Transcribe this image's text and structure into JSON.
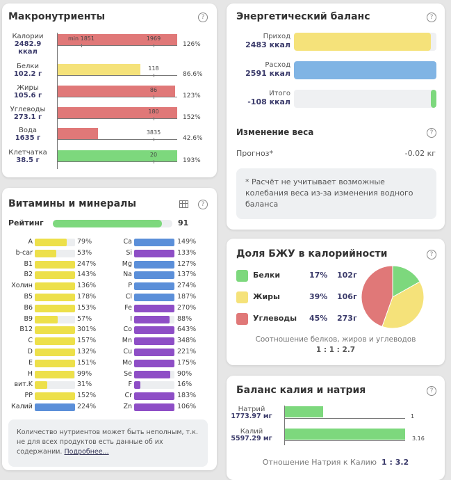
{
  "colors": {
    "red": "#e07878",
    "yellow": "#f5e27a",
    "green": "#7dd87d",
    "blue": "#5b8fd9",
    "purple": "#8e4ec6",
    "vit_yellow": "#ede04a",
    "light_blue": "#80b4e4"
  },
  "macro": {
    "title": "Макронутриенты",
    "help": "?",
    "rows": [
      {
        "name": "Калории",
        "value": "2482.9",
        "unit": "ккал",
        "pct": "126%",
        "fill": 1.0,
        "color": "red",
        "norm": "1969",
        "min": "min 1851"
      },
      {
        "name": "Белки",
        "value": "102.2 г",
        "pct": "86.6%",
        "fill": 0.69,
        "color": "yellow",
        "norm": "118"
      },
      {
        "name": "Жиры",
        "value": "105.6 г",
        "pct": "123%",
        "fill": 0.98,
        "color": "red",
        "norm": "86"
      },
      {
        "name": "Углеводы",
        "value": "273.1 г",
        "pct": "152%",
        "fill": 1.0,
        "color": "red",
        "norm": "180"
      },
      {
        "name": "Вода",
        "value": "1635 г",
        "pct": "42.6%",
        "fill": 0.34,
        "color": "red",
        "norm": "3835"
      },
      {
        "name": "Клетчатка",
        "value": "38.5 г",
        "pct": "193%",
        "fill": 1.0,
        "color": "green",
        "norm": "20"
      }
    ]
  },
  "vitamins": {
    "title": "Витамины и минералы",
    "help": "?",
    "table_icon": "table-icon",
    "rating_label": "Рейтинг",
    "rating": "91",
    "rating_fill": 0.91,
    "left": [
      [
        "A",
        "79%",
        79,
        "vit_yellow"
      ],
      [
        "b-car",
        "53%",
        53,
        "vit_yellow"
      ],
      [
        "B1",
        "247%",
        100,
        "vit_yellow"
      ],
      [
        "B2",
        "143%",
        100,
        "vit_yellow"
      ],
      [
        "Холин",
        "136%",
        100,
        "vit_yellow"
      ],
      [
        "B5",
        "178%",
        100,
        "vit_yellow"
      ],
      [
        "B6",
        "153%",
        100,
        "vit_yellow"
      ],
      [
        "B9",
        "57%",
        57,
        "vit_yellow"
      ],
      [
        "B12",
        "301%",
        100,
        "vit_yellow"
      ],
      [
        "C",
        "157%",
        100,
        "vit_yellow"
      ],
      [
        "D",
        "132%",
        100,
        "vit_yellow"
      ],
      [
        "E",
        "151%",
        100,
        "vit_yellow"
      ],
      [
        "H",
        "99%",
        99,
        "vit_yellow"
      ],
      [
        "вит.K",
        "31%",
        31,
        "vit_yellow"
      ],
      [
        "PP",
        "152%",
        100,
        "vit_yellow"
      ],
      [
        "Калий",
        "224%",
        100,
        "blue"
      ]
    ],
    "right": [
      [
        "Ca",
        "149%",
        100,
        "blue"
      ],
      [
        "Si",
        "133%",
        100,
        "purple"
      ],
      [
        "Mg",
        "127%",
        100,
        "blue"
      ],
      [
        "Na",
        "137%",
        100,
        "blue"
      ],
      [
        "P",
        "274%",
        100,
        "blue"
      ],
      [
        "Cl",
        "187%",
        100,
        "blue"
      ],
      [
        "Fe",
        "270%",
        100,
        "purple"
      ],
      [
        "I",
        "88%",
        88,
        "purple"
      ],
      [
        "Co",
        "643%",
        100,
        "purple"
      ],
      [
        "Mn",
        "348%",
        100,
        "purple"
      ],
      [
        "Cu",
        "221%",
        100,
        "purple"
      ],
      [
        "Mo",
        "175%",
        100,
        "purple"
      ],
      [
        "Se",
        "90%",
        90,
        "purple"
      ],
      [
        "F",
        "16%",
        16,
        "purple"
      ],
      [
        "Cr",
        "183%",
        100,
        "purple"
      ],
      [
        "Zn",
        "106%",
        100,
        "purple"
      ]
    ],
    "note": "Количество нутриентов может быть неполным, т.к. не для всех продуктов есть данные об их содержании.",
    "note_link": "Подробнее..."
  },
  "energy": {
    "title": "Энергетический баланс",
    "help": "?",
    "rows": [
      {
        "label": "Приход",
        "value": "2483 ккал",
        "fill": 0.96,
        "color": "yellow"
      },
      {
        "label": "Расход",
        "value": "2591 ккал",
        "fill": 1.0,
        "color": "light_blue"
      },
      {
        "label": "Итого",
        "value": "-108 ккал",
        "fill": 0.04,
        "color": "green"
      }
    ],
    "weight_title": "Изменение веса",
    "forecast_label": "Прогноз*",
    "forecast_value": "-0.02 кг",
    "note": "* Расчёт не учитывает возможные колебания веса из-за изменения водного баланса"
  },
  "bju": {
    "title": "Доля БЖУ в калорийности",
    "help": "?",
    "chart_data": {
      "type": "pie",
      "slices": [
        {
          "name": "Белки",
          "percent": 17,
          "grams": "102г",
          "color": "green"
        },
        {
          "name": "Жиры",
          "percent": 39,
          "grams": "106г",
          "color": "yellow"
        },
        {
          "name": "Углеводы",
          "percent": 45,
          "grams": "273г",
          "color": "red"
        }
      ]
    },
    "ratio_label": "Соотношение белков, жиров и углеводов",
    "ratio": "1 : 1 : 2.7"
  },
  "kna": {
    "title": "Баланс калия и натрия",
    "help": "?",
    "rows": [
      {
        "name": "Натрий",
        "value": "1773.97 мг",
        "ratio": "1",
        "fill": 0.32
      },
      {
        "name": "Калий",
        "value": "5597.29 мг",
        "ratio": "3.16",
        "fill": 1.0
      }
    ],
    "ratio_label": "Отношение Натрия к Калию",
    "ratio": "1 : 3.2"
  }
}
